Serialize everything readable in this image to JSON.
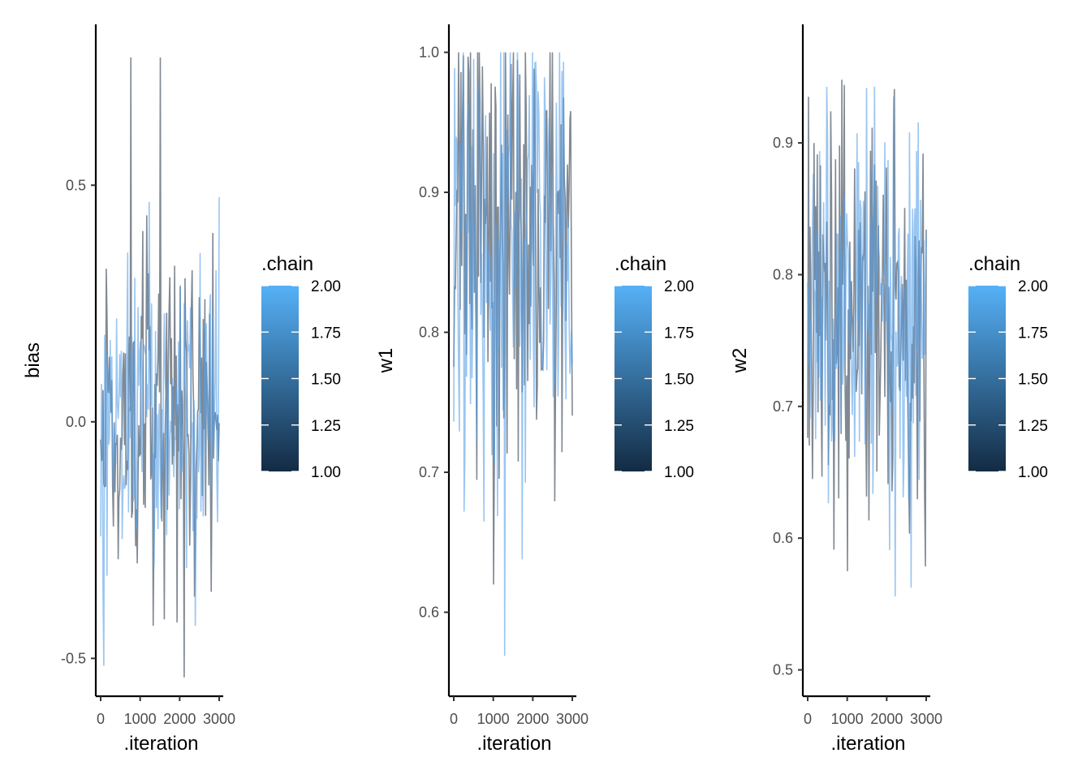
{
  "chart_data": [
    {
      "type": "line",
      "ylabel": "bias",
      "xlabel": ".iteration",
      "xlim": [
        0,
        3000
      ],
      "x_ticks": [
        0,
        1000,
        2000,
        3000
      ],
      "x_tick_labels": [
        "0",
        "1000",
        "2000",
        "3000"
      ],
      "ylim": [
        -0.58,
        0.84
      ],
      "y_ticks": [
        -0.5,
        0.0,
        0.5
      ],
      "y_tick_labels": [
        "-0.5",
        "0.0",
        "0.5"
      ],
      "trace": {
        "center": 0.01,
        "spread": 0.18,
        "min": -0.54,
        "max": 0.77,
        "seed": 11
      },
      "series": [
        {
          "name": "1.00",
          "color": "#6b7480"
        },
        {
          "name": "2.00",
          "color": "#56a0e8"
        }
      ],
      "legend": {
        "title": ".chain",
        "placement": "right",
        "labels": [
          "2.00",
          "1.75",
          "1.50",
          "1.25",
          "1.00"
        ],
        "color_low": "#132b43",
        "color_high": "#56b1f7"
      }
    },
    {
      "type": "line",
      "ylabel": "w1",
      "xlabel": ".iteration",
      "xlim": [
        0,
        3000
      ],
      "x_ticks": [
        0,
        1000,
        2000,
        3000
      ],
      "x_tick_labels": [
        "0",
        "1000",
        "2000",
        "3000"
      ],
      "ylim": [
        0.54,
        1.02
      ],
      "y_ticks": [
        0.6,
        0.7,
        0.8,
        0.9,
        1.0
      ],
      "y_tick_labels": [
        "0.6",
        "0.7",
        "0.8",
        "0.9",
        "1.0"
      ],
      "trace": {
        "center": 0.87,
        "spread": 0.09,
        "min": 0.557,
        "max": 1.0,
        "seed": 23
      },
      "series": [
        {
          "name": "1.00",
          "color": "#6b7480"
        },
        {
          "name": "2.00",
          "color": "#56a0e8"
        }
      ],
      "legend": {
        "title": ".chain",
        "placement": "right",
        "labels": [
          "2.00",
          "1.75",
          "1.50",
          "1.25",
          "1.00"
        ],
        "color_low": "#132b43",
        "color_high": "#56b1f7"
      }
    },
    {
      "type": "line",
      "ylabel": "w2",
      "xlabel": ".iteration",
      "xlim": [
        0,
        3000
      ],
      "x_ticks": [
        0,
        1000,
        2000,
        3000
      ],
      "x_tick_labels": [
        "0",
        "1000",
        "2000",
        "3000"
      ],
      "ylim": [
        0.48,
        0.99
      ],
      "y_ticks": [
        0.5,
        0.6,
        0.7,
        0.8,
        0.9
      ],
      "y_tick_labels": [
        "0.5",
        "0.6",
        "0.7",
        "0.8",
        "0.9"
      ],
      "trace": {
        "center": 0.76,
        "spread": 0.08,
        "min": 0.5,
        "max": 0.973,
        "seed": 37
      },
      "series": [
        {
          "name": "1.00",
          "color": "#6b7480"
        },
        {
          "name": "2.00",
          "color": "#56a0e8"
        }
      ],
      "legend": {
        "title": ".chain",
        "placement": "right",
        "labels": [
          "2.00",
          "1.75",
          "1.50",
          "1.25",
          "1.00"
        ],
        "color_low": "#132b43",
        "color_high": "#56b1f7"
      }
    }
  ]
}
